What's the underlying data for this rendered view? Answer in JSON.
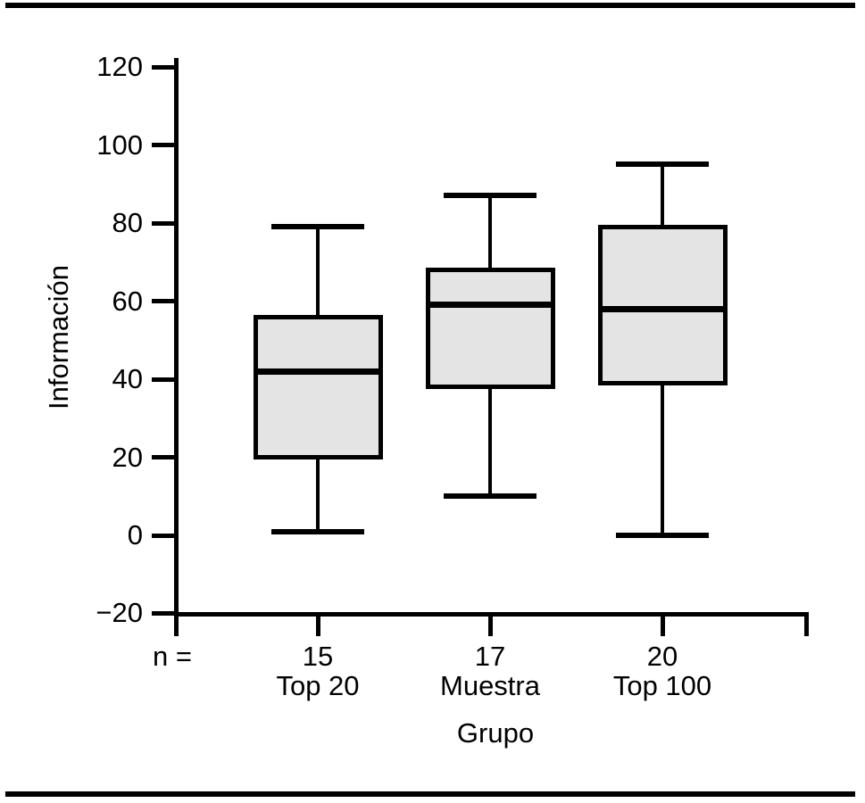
{
  "chart_data": {
    "type": "boxplot",
    "title": "",
    "xlabel": "Grupo",
    "ylabel": "Información",
    "n_label": "n =",
    "ylim": [
      -20,
      120
    ],
    "y_ticks": [
      120,
      100,
      80,
      60,
      40,
      20,
      0,
      -20
    ],
    "grid": false,
    "categories": [
      {
        "label": "Top 20",
        "n": 15,
        "whisker_low": 1,
        "q1": 20,
        "median": 42,
        "q3": 56,
        "whisker_high": 79
      },
      {
        "label": "Muestra",
        "n": 17,
        "whisker_low": 10,
        "q1": 38,
        "median": 59,
        "q3": 68,
        "whisker_high": 87
      },
      {
        "label": "Top 100",
        "n": 20,
        "whisker_low": 0,
        "q1": 39,
        "median": 58,
        "q3": 79,
        "whisker_high": 95
      }
    ],
    "box_fill": "#e4e4e4",
    "line_color": "#000000",
    "background": "#ffffff"
  }
}
